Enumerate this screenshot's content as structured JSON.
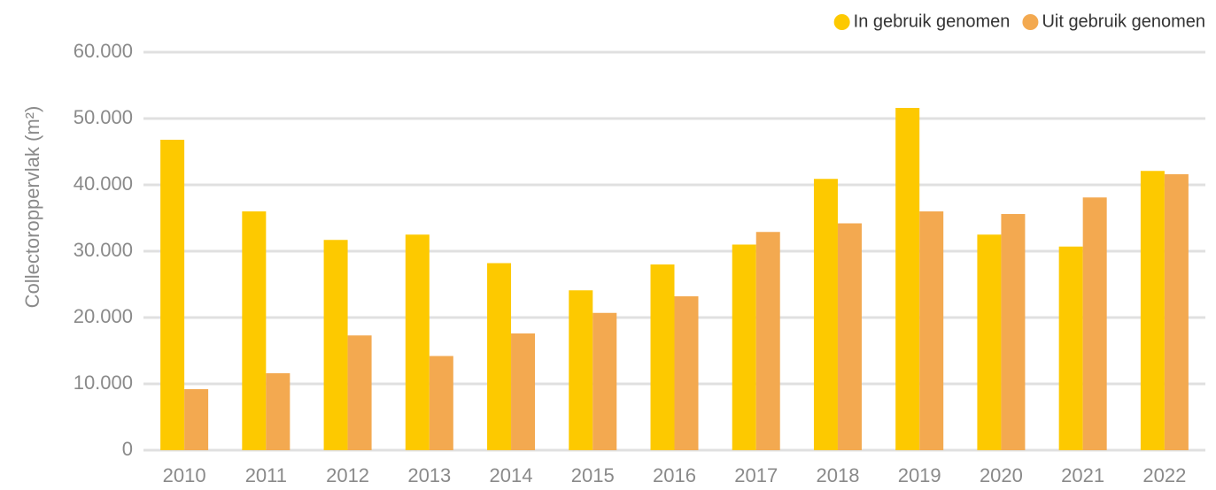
{
  "chart_data": {
    "type": "bar",
    "y_label": "Collectoroppervlak (m²)",
    "categories": [
      "2010",
      "2011",
      "2012",
      "2013",
      "2014",
      "2015",
      "2016",
      "2017",
      "2018",
      "2019",
      "2020",
      "2021",
      "2022"
    ],
    "series": [
      {
        "name": "In gebruik genomen",
        "color": "#fdc900",
        "values": [
          46800,
          36000,
          31700,
          32500,
          28200,
          24100,
          28000,
          31000,
          40900,
          51600,
          32500,
          30700,
          42100
        ]
      },
      {
        "name": "Uit gebruik genomen",
        "color": "#f3a950",
        "values": [
          9200,
          11600,
          17300,
          14200,
          17600,
          20700,
          23200,
          32900,
          34200,
          36000,
          35600,
          38100,
          41600
        ]
      }
    ],
    "ylim": [
      0,
      60000
    ],
    "yticks": [
      0,
      {
        "value": 10000,
        "label": "10.000"
      },
      {
        "value": 20000,
        "label": "20.000"
      },
      {
        "value": 30000,
        "label": "30.000"
      },
      {
        "value": 40000,
        "label": "40.000"
      },
      {
        "value": 50000,
        "label": "50.000"
      },
      {
        "value": 60000,
        "label": "60.000"
      }
    ],
    "grid": true,
    "legend": "top-right"
  }
}
